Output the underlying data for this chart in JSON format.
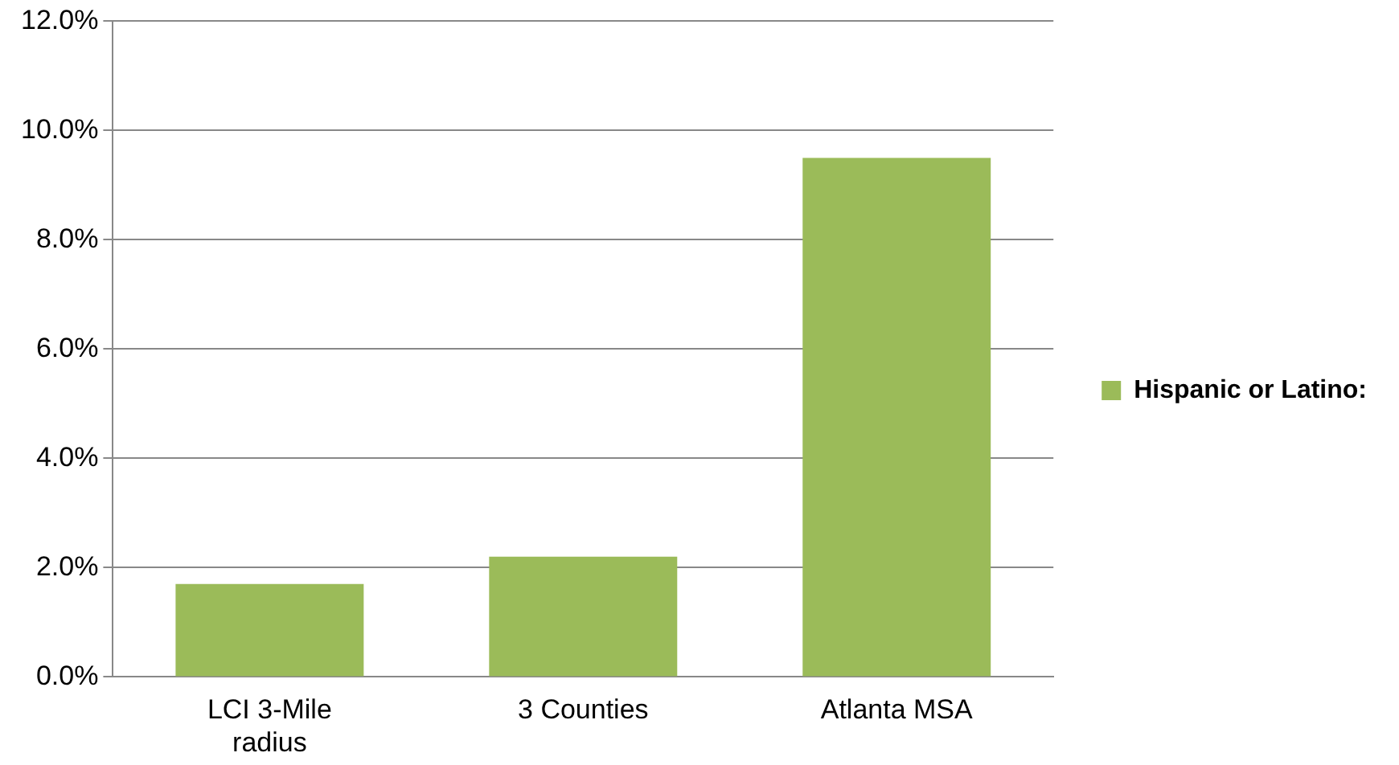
{
  "chart_data": {
    "type": "bar",
    "categories": [
      "LCI 3-Mile radius",
      "3 Counties",
      "Atlanta MSA"
    ],
    "series": [
      {
        "name": "Hispanic or Latino:",
        "color": "#9bbb59",
        "values": [
          1.7,
          2.2,
          9.5
        ]
      }
    ],
    "ylim": [
      0,
      12
    ],
    "yticks": [
      {
        "value": 0,
        "label": "0.0%"
      },
      {
        "value": 2,
        "label": "2.0%"
      },
      {
        "value": 4,
        "label": "4.0%"
      },
      {
        "value": 6,
        "label": "6.0%"
      },
      {
        "value": 8,
        "label": "8.0%"
      },
      {
        "value": 10,
        "label": "10.0%"
      },
      {
        "value": 12,
        "label": "12.0%"
      }
    ],
    "grid": "y",
    "legend": "right"
  }
}
